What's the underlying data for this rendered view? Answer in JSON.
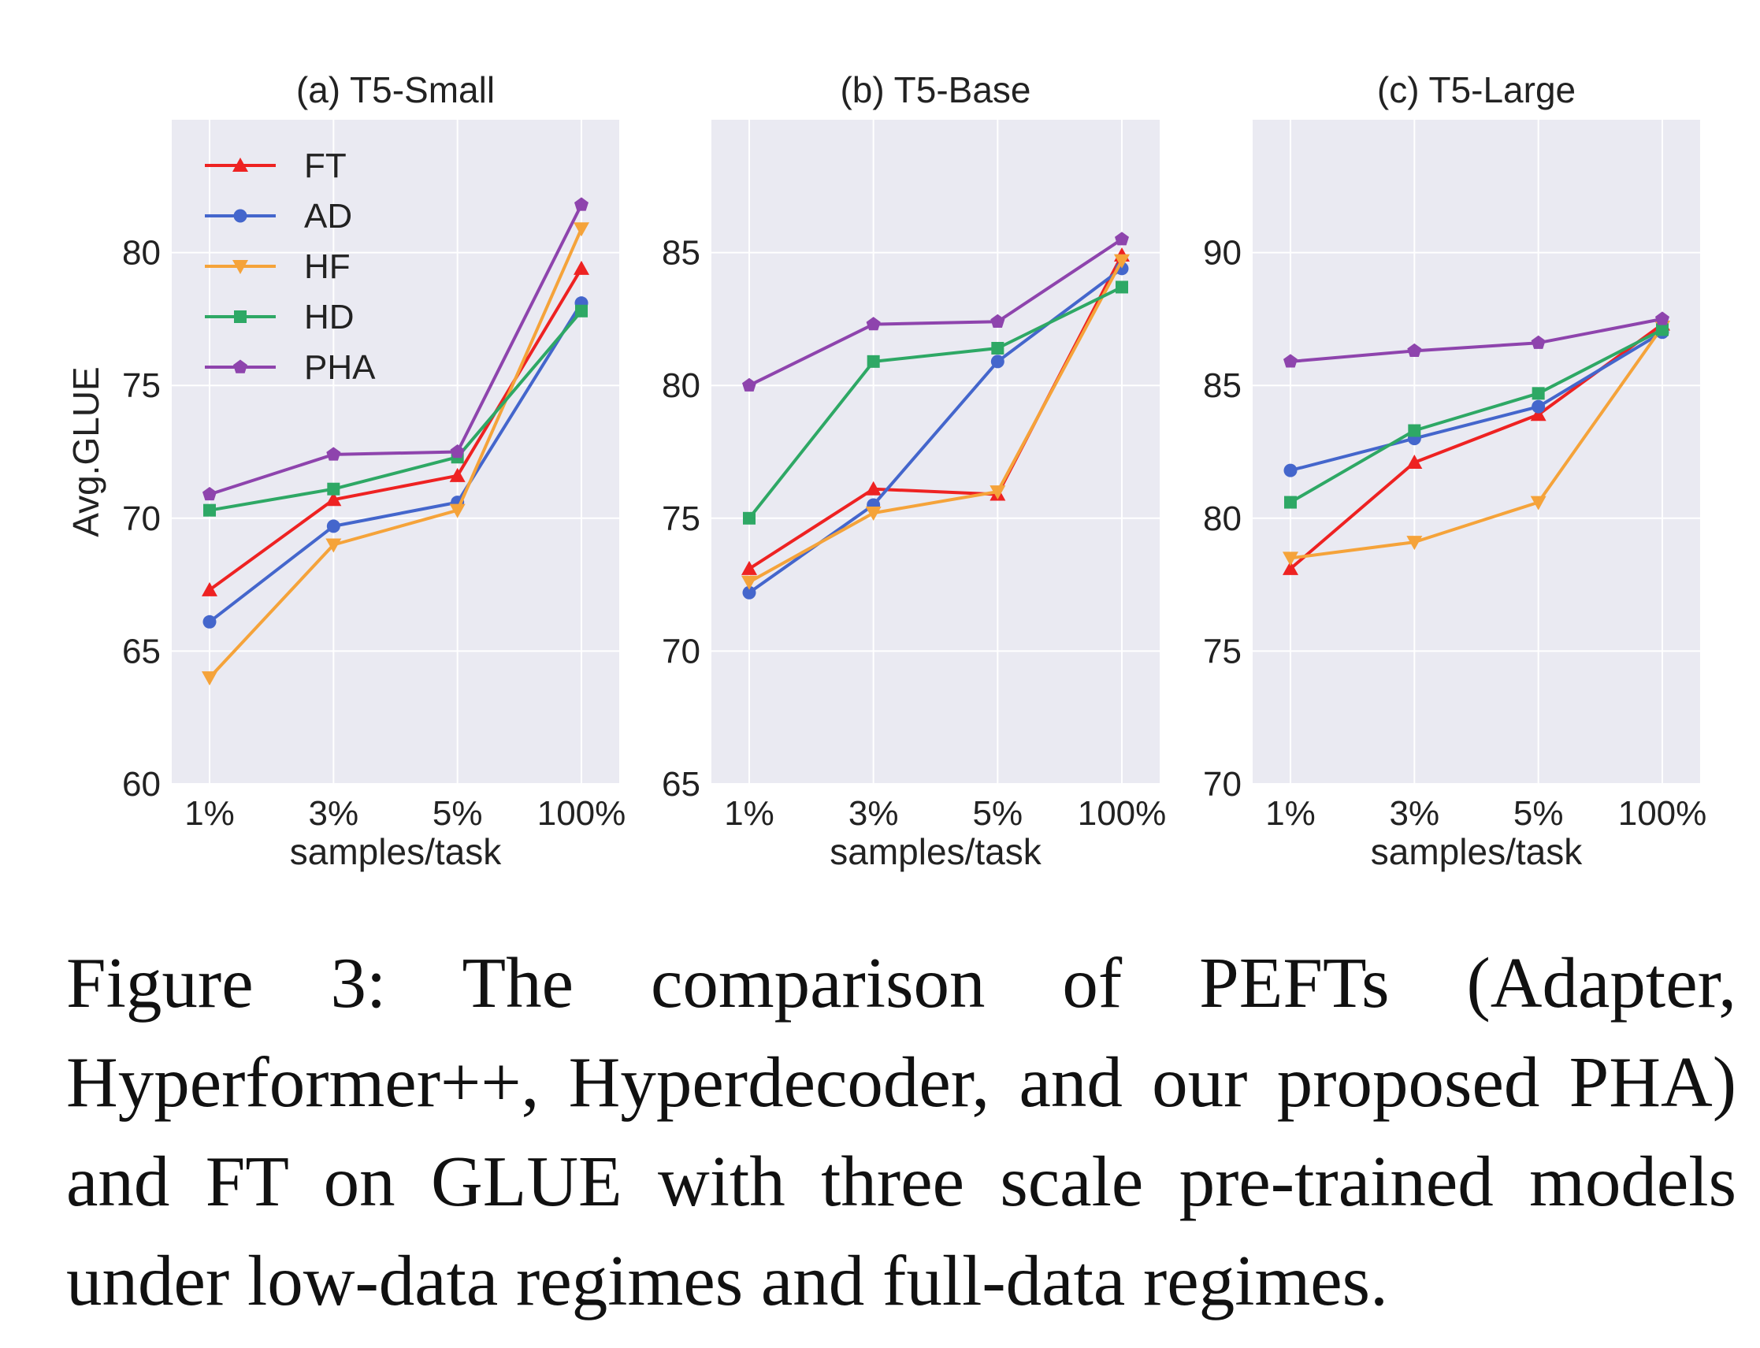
{
  "chart_data": [
    {
      "type": "line",
      "title": "(a) T5-Small",
      "xlabel": "samples/task",
      "ylabel": "Avg.GLUE",
      "categories": [
        "1%",
        "3%",
        "5%",
        "100%"
      ],
      "ylim": [
        60,
        85
      ],
      "yticks": [
        60,
        65,
        70,
        75,
        80
      ],
      "grid": true,
      "legend": "top-left",
      "series": [
        {
          "name": "FT",
          "color": "#ee2222",
          "marker": "triangle-up",
          "values": [
            67.3,
            70.7,
            71.6,
            79.4
          ]
        },
        {
          "name": "AD",
          "color": "#4466cc",
          "marker": "circle",
          "values": [
            66.1,
            69.7,
            70.6,
            78.1
          ]
        },
        {
          "name": "HF",
          "color": "#f5a33a",
          "marker": "triangle-down",
          "values": [
            64.0,
            69.0,
            70.3,
            80.9
          ]
        },
        {
          "name": "HD",
          "color": "#2ea865",
          "marker": "square",
          "values": [
            70.3,
            71.1,
            72.3,
            77.8
          ]
        },
        {
          "name": "PHA",
          "color": "#8e44ad",
          "marker": "pentagon",
          "values": [
            70.9,
            72.4,
            72.5,
            81.8
          ]
        }
      ]
    },
    {
      "type": "line",
      "title": "(b) T5-Base",
      "xlabel": "samples/task",
      "ylabel": "",
      "categories": [
        "1%",
        "3%",
        "5%",
        "100%"
      ],
      "ylim": [
        65,
        90
      ],
      "yticks": [
        65,
        70,
        75,
        80,
        85
      ],
      "grid": true,
      "series": [
        {
          "name": "FT",
          "color": "#ee2222",
          "marker": "triangle-up",
          "values": [
            73.1,
            76.1,
            75.9,
            84.9
          ]
        },
        {
          "name": "AD",
          "color": "#4466cc",
          "marker": "circle",
          "values": [
            72.2,
            75.5,
            80.9,
            84.4
          ]
        },
        {
          "name": "HF",
          "color": "#f5a33a",
          "marker": "triangle-down",
          "values": [
            72.6,
            75.2,
            76.0,
            84.7
          ]
        },
        {
          "name": "HD",
          "color": "#2ea865",
          "marker": "square",
          "values": [
            75.0,
            80.9,
            81.4,
            83.7
          ]
        },
        {
          "name": "PHA",
          "color": "#8e44ad",
          "marker": "pentagon",
          "values": [
            80.0,
            82.3,
            82.4,
            85.5
          ]
        }
      ]
    },
    {
      "type": "line",
      "title": "(c) T5-Large",
      "xlabel": "samples/task",
      "ylabel": "",
      "categories": [
        "1%",
        "3%",
        "5%",
        "100%"
      ],
      "ylim": [
        70,
        95
      ],
      "yticks": [
        70,
        75,
        80,
        85,
        90
      ],
      "grid": true,
      "series": [
        {
          "name": "FT",
          "color": "#ee2222",
          "marker": "triangle-up",
          "values": [
            78.1,
            82.1,
            83.9,
            87.3
          ]
        },
        {
          "name": "AD",
          "color": "#4466cc",
          "marker": "circle",
          "values": [
            81.8,
            83.0,
            84.2,
            87.0
          ]
        },
        {
          "name": "HF",
          "color": "#f5a33a",
          "marker": "triangle-down",
          "values": [
            78.5,
            79.1,
            80.6,
            87.2
          ]
        },
        {
          "name": "HD",
          "color": "#2ea865",
          "marker": "square",
          "values": [
            80.6,
            83.3,
            84.7,
            87.1
          ]
        },
        {
          "name": "PHA",
          "color": "#8e44ad",
          "marker": "pentagon",
          "values": [
            85.9,
            86.3,
            86.6,
            87.5
          ]
        }
      ]
    }
  ],
  "caption": "Figure 3: The comparison of PEFTs (Adapter, Hyperformer++, Hyperdecoder, and our proposed PHA) and FT on GLUE with three scale pre-trained models under low-data regimes and full-data regimes."
}
